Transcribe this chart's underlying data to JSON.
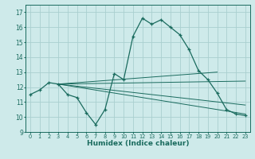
{
  "xlabel": "Humidex (Indice chaleur)",
  "bg_color": "#ceeaea",
  "line_color": "#1a6b5e",
  "grid_color": "#aacfcf",
  "xlim": [
    -0.5,
    23.5
  ],
  "ylim": [
    9.0,
    17.5
  ],
  "yticks": [
    9,
    10,
    11,
    12,
    13,
    14,
    15,
    16,
    17
  ],
  "xticks": [
    0,
    1,
    2,
    3,
    4,
    5,
    6,
    7,
    8,
    9,
    10,
    11,
    12,
    13,
    14,
    15,
    16,
    17,
    18,
    19,
    20,
    21,
    22,
    23
  ],
  "series0": {
    "x": [
      0,
      1,
      2,
      3,
      4,
      5,
      6,
      7,
      8,
      9,
      10,
      11,
      12,
      13,
      14,
      15,
      16,
      17,
      18,
      19,
      20,
      21,
      22,
      23
    ],
    "y": [
      11.5,
      11.8,
      12.3,
      12.2,
      11.5,
      11.3,
      10.3,
      9.5,
      10.5,
      12.9,
      12.5,
      15.4,
      16.6,
      16.2,
      16.5,
      16.0,
      15.5,
      14.5,
      13.1,
      12.5,
      11.6,
      10.5,
      10.2,
      10.1
    ]
  },
  "lines": [
    {
      "x": [
        3,
        23
      ],
      "y": [
        12.2,
        10.2
      ]
    },
    {
      "x": [
        3,
        23
      ],
      "y": [
        12.2,
        12.4
      ]
    },
    {
      "x": [
        3,
        20
      ],
      "y": [
        12.2,
        13.0
      ]
    },
    {
      "x": [
        3,
        23
      ],
      "y": [
        12.2,
        10.8
      ]
    }
  ]
}
